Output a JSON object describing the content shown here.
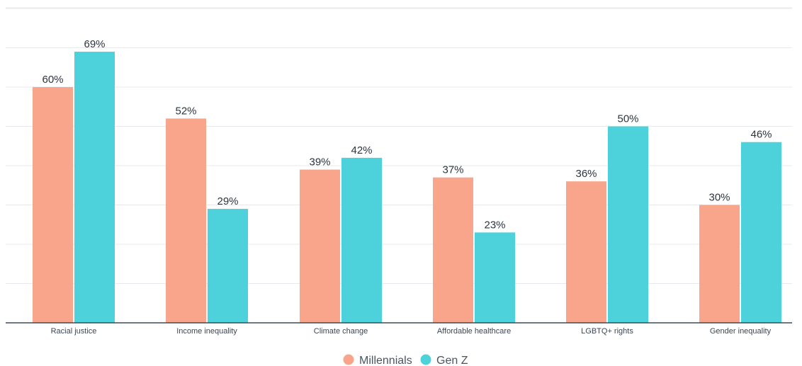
{
  "chart_data": {
    "type": "bar",
    "categories": [
      "Racial justice",
      "Income inequality",
      "Climate change",
      "Affordable healthcare",
      "LGBTQ+ rights",
      "Gender inequality"
    ],
    "series": [
      {
        "name": "Millennials",
        "values": [
          60,
          52,
          39,
          37,
          36,
          30
        ],
        "labels": [
          "60%",
          "52%",
          "39%",
          "37%",
          "36%",
          "30%"
        ],
        "color": "#f9a58c"
      },
      {
        "name": "Gen Z",
        "values": [
          69,
          29,
          42,
          23,
          50,
          46
        ],
        "labels": [
          "69%",
          "29%",
          "42%",
          "23%",
          "50%",
          "46%"
        ],
        "color": "#4dd2db"
      }
    ],
    "ylim": [
      0,
      80
    ],
    "grid": true,
    "legend": "bottom-center",
    "title": "",
    "xlabel": "",
    "ylabel": ""
  }
}
